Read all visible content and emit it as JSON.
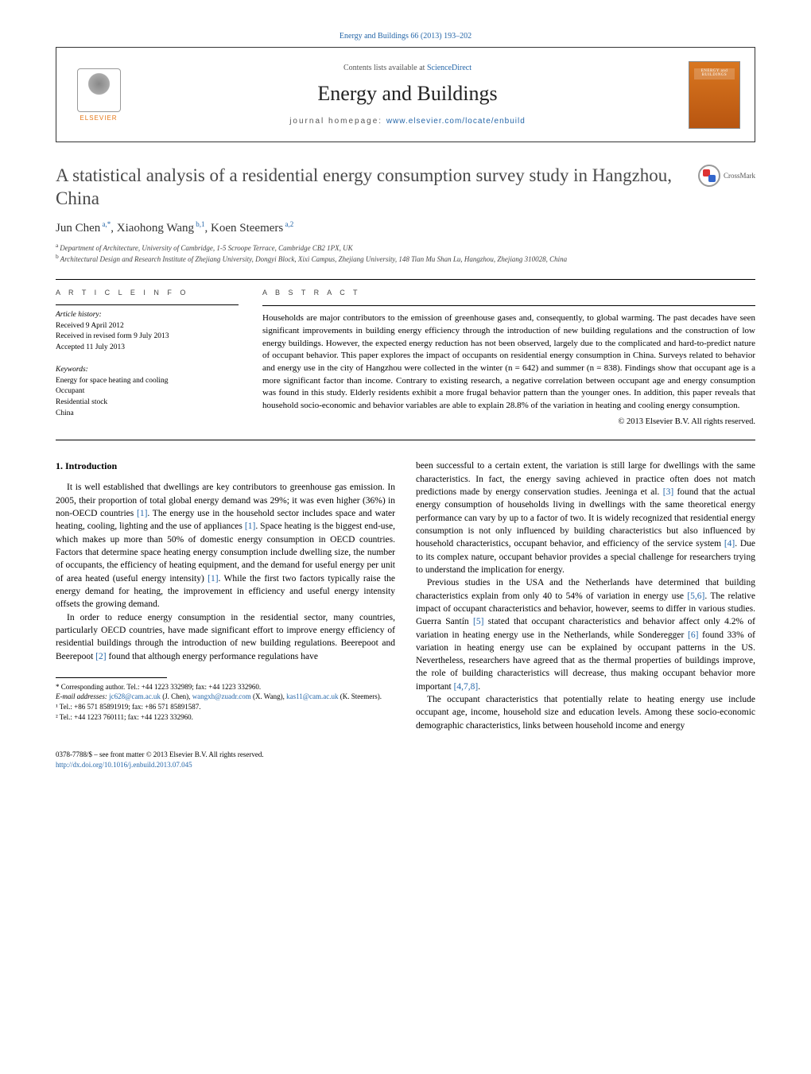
{
  "journal_ref": "Energy and Buildings 66 (2013) 193–202",
  "header": {
    "contents_prefix": "Contents lists available at ",
    "contents_link": "ScienceDirect",
    "journal_title": "Energy and Buildings",
    "homepage_prefix": "journal homepage: ",
    "homepage_link": "www.elsevier.com/locate/enbuild",
    "publisher": "ELSEVIER",
    "cover_text": "ENERGY and BUILDINGS"
  },
  "crossmark_label": "CrossMark",
  "title": "A statistical analysis of a residential energy consumption survey study in Hangzhou, China",
  "authors_html": "Jun Chen",
  "authors": [
    {
      "name": "Jun Chen",
      "marks": "a,*"
    },
    {
      "name": "Xiaohong Wang",
      "marks": "b,1"
    },
    {
      "name": "Koen Steemers",
      "marks": "a,2"
    }
  ],
  "affiliations": [
    {
      "mark": "a",
      "text": "Department of Architecture, University of Cambridge, 1-5 Scroope Terrace, Cambridge CB2 1PX, UK"
    },
    {
      "mark": "b",
      "text": "Architectural Design and Research Institute of Zhejiang University, Dongyi Block, Xixi Campus, Zhejiang University, 148 Tian Mu Shan Lu, Hangzhou, Zhejiang 310028, China"
    }
  ],
  "article_info_label": "A R T I C L E    I N F O",
  "abstract_label": "A B S T R A C T",
  "history_head": "Article history:",
  "history": [
    "Received 9 April 2012",
    "Received in revised form 9 July 2013",
    "Accepted 11 July 2013"
  ],
  "keywords_head": "Keywords:",
  "keywords": [
    "Energy for space heating and cooling",
    "Occupant",
    "Residential stock",
    "China"
  ],
  "abstract_text": "Households are major contributors to the emission of greenhouse gases and, consequently, to global warming. The past decades have seen significant improvements in building energy efficiency through the introduction of new building regulations and the construction of low energy buildings. However, the expected energy reduction has not been observed, largely due to the complicated and hard-to-predict nature of occupant behavior. This paper explores the impact of occupants on residential energy consumption in China. Surveys related to behavior and energy use in the city of Hangzhou were collected in the winter (n = 642) and summer (n = 838). Findings show that occupant age is a more significant factor than income. Contrary to existing research, a negative correlation between occupant age and energy consumption was found in this study. Elderly residents exhibit a more frugal behavior pattern than the younger ones. In addition, this paper reveals that household socio-economic and behavior variables are able to explain 28.8% of the variation in heating and cooling energy consumption.",
  "copyright": "© 2013 Elsevier B.V. All rights reserved.",
  "intro_heading": "1.  Introduction",
  "para1a": "It is well established that dwellings are key contributors to greenhouse gas emission. In 2005, their proportion of total global energy demand was 29%; it was even higher (36%) in non-OECD countries ",
  "c1": "[1]",
  "para1b": ". The energy use in the household sector includes space and water heating, cooling, lighting and the use of appliances ",
  "para1c": ". Space heating is the biggest end-use, which makes up more than 50% of domestic energy consumption in OECD countries. Factors that determine space heating energy consumption include dwelling size, the number of occupants, the efficiency of heating equipment, and the demand for useful energy per unit of area heated (useful energy intensity) ",
  "para1d": ". While the first two factors typically raise the energy demand for heating, the improvement in efficiency and useful energy intensity offsets the growing demand.",
  "para2a": "In order to reduce energy consumption in the residential sector, many countries, particularly OECD countries, have made significant effort to improve energy efficiency of residential buildings through the introduction of new building regulations. Beerepoot and Beerepoot ",
  "c2": "[2]",
  "para2b": " found that although energy performance regulations have",
  "para3a": "been successful to a certain extent, the variation is still large for dwellings with the same characteristics. In fact, the energy saving achieved in practice often does not match predictions made by energy conservation studies. Jeeninga et al. ",
  "c3": "[3]",
  "para3b": " found that the actual energy consumption of households living in dwellings with the same theoretical energy performance can vary by up to a factor of two. It is widely recognized that residential energy consumption is not only influenced by building characteristics but also influenced by household characteristics, occupant behavior, and efficiency of the service system ",
  "c4": "[4]",
  "para3c": ". Due to its complex nature, occupant behavior provides a special challenge for researchers trying to understand the implication for energy.",
  "para4a": "Previous studies in the USA and the Netherlands have determined that building characteristics explain from only 40 to 54% of variation in energy use ",
  "c56": "[5,6]",
  "para4b": ". The relative impact of occupant characteristics and behavior, however, seems to differ in various studies. Guerra Santín ",
  "c5": "[5]",
  "para4c": " stated that occupant characteristics and behavior affect only 4.2% of variation in heating energy use in the Netherlands, while Sonderegger ",
  "c6": "[6]",
  "para4d": " found 33% of variation in heating energy use can be explained by occupant patterns in the US. Nevertheless, researchers have agreed that as the thermal properties of buildings improve, the role of building characteristics will decrease, thus making occupant behavior more important ",
  "c478": "[4,7,8]",
  "para4e": ".",
  "para5": "The occupant characteristics that potentially relate to heating energy use include occupant age, income, household size and education levels. Among these socio-economic demographic characteristics, links between household income and energy",
  "footnotes": {
    "corr": "* Corresponding author. Tel.: +44 1223 332989; fax: +44 1223 332960.",
    "email_label": "E-mail addresses: ",
    "email1": "jc628@cam.ac.uk",
    "email1_name": " (J. Chen), ",
    "email2": "wangxh@zuadr.com",
    "email2_name": " (X. Wang), ",
    "email3": "kas11@cam.ac.uk",
    "email3_name": " (K. Steemers).",
    "fn1": "¹ Tel.: +86 571 85891919; fax: +86 571 85891587.",
    "fn2": "² Tel.: +44 1223 760111; fax: +44 1223 332960."
  },
  "footer": {
    "line1": "0378-7788/$ – see front matter © 2013 Elsevier B.V. All rights reserved.",
    "doi": "http://dx.doi.org/10.1016/j.enbuild.2013.07.045"
  },
  "colors": {
    "link": "#2566a8",
    "elsevier_orange": "#e67817",
    "text": "#000000",
    "title_gray": "#4a4a4a"
  }
}
